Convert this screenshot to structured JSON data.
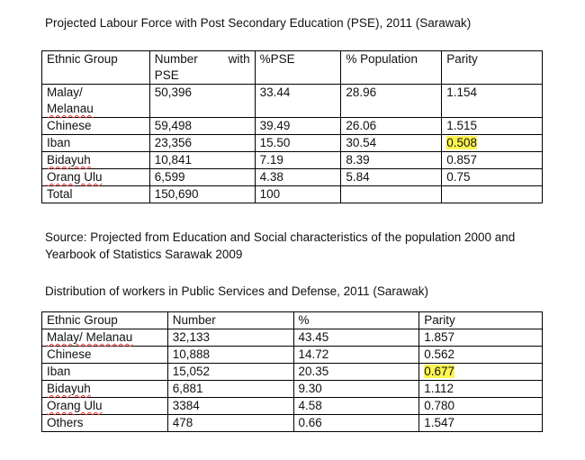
{
  "title1": "Projected Labour Force with Post Secondary Education (PSE), 2011 (Sarawak)",
  "table1": {
    "headers": {
      "ethnic": "Ethnic Group",
      "number_a": "Number",
      "number_b": "with",
      "number_c": "PSE",
      "pse": "%PSE",
      "population": "% Population",
      "parity": "Parity"
    },
    "rows": [
      {
        "group": "Malay/",
        "group2": "Melanau",
        "number": "50,396",
        "pse": "33.44",
        "population": "28.96",
        "parity": "1.154"
      },
      {
        "group": "Chinese",
        "number": "59,498",
        "pse": "39.49",
        "population": "26.06",
        "parity": "1.515"
      },
      {
        "group": "Iban",
        "number": "23,356",
        "pse": "15.50",
        "population": "30.54",
        "parity": "0.508"
      },
      {
        "group": "Bidayuh",
        "number": "10,841",
        "pse": "7.19",
        "population": "8.39",
        "parity": "0.857"
      },
      {
        "group": "Orang Ulu",
        "number": "6,599",
        "pse": "4.38",
        "population": "5.84",
        "parity": "0.75"
      },
      {
        "group": "Total",
        "number": "150,690",
        "pse": "100",
        "population": "",
        "parity": ""
      }
    ]
  },
  "source": "Source: Projected from Education and Social characteristics of the population 2000 and Yearbook of Statistics Sarawak 2009",
  "title2": "Distribution of workers in Public Services and Defense, 2011 (Sarawak)",
  "table2": {
    "headers": {
      "ethnic": "Ethnic Group",
      "number": "Number",
      "percent": "%",
      "parity": "Parity"
    },
    "rows": [
      {
        "group": "Malay/ Melanau",
        "number": "32,133",
        "percent": "43.45",
        "parity": "1.857"
      },
      {
        "group": "Chinese",
        "number": "10,888",
        "percent": "14.72",
        "parity": "0.562"
      },
      {
        "group": "Iban",
        "number": "15,052",
        "percent": "20.35",
        "parity": "0.677"
      },
      {
        "group": "Bidayuh",
        "number": "6,881",
        "percent": "9.30",
        "parity": "1.112"
      },
      {
        "group": "Orang Ulu",
        "number": "3384",
        "percent": "4.58",
        "parity": "0.780"
      },
      {
        "group": "Others",
        "number": "478",
        "percent": "0.66",
        "parity": "1.547"
      }
    ]
  },
  "colors": {
    "highlight": "#fff44f",
    "spellcheck": "#d33"
  }
}
